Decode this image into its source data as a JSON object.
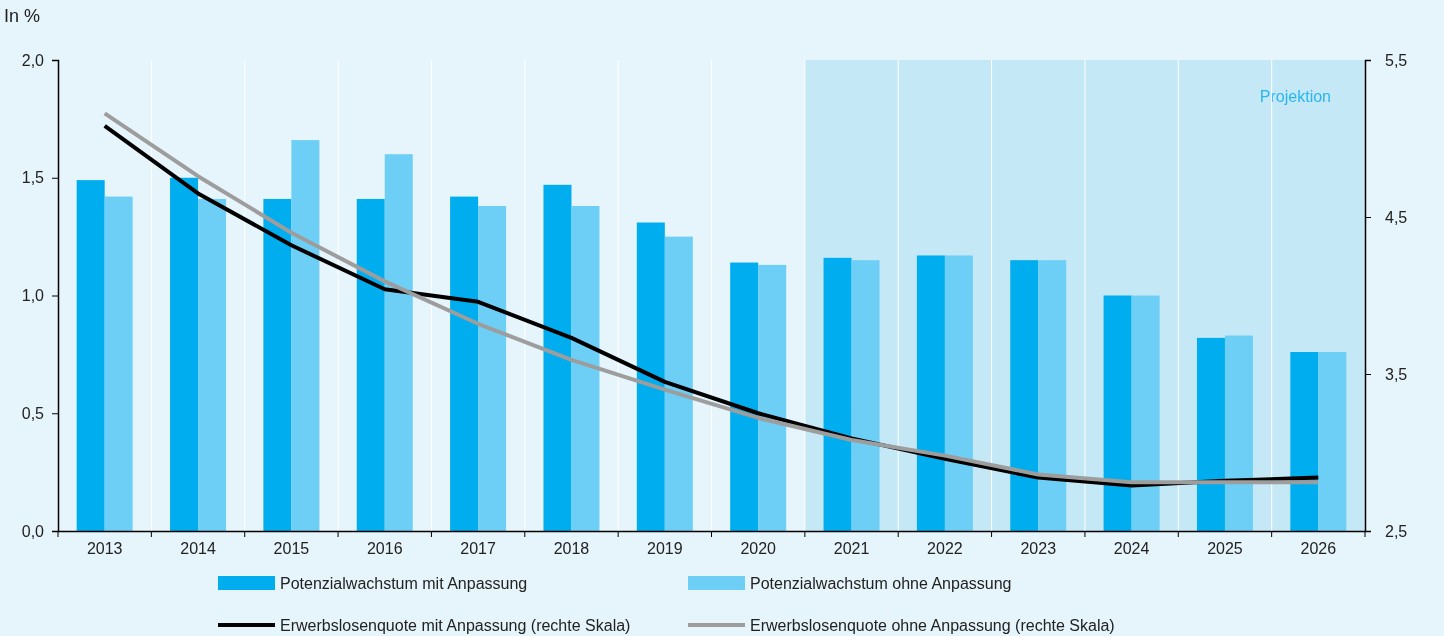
{
  "chart_data": {
    "type": "bar",
    "ylabel": "In %",
    "categories": [
      "2013",
      "2014",
      "2015",
      "2016",
      "2017",
      "2018",
      "2019",
      "2020",
      "2021",
      "2022",
      "2023",
      "2024",
      "2025",
      "2026"
    ],
    "series": [
      {
        "name": "Potenzialwachstum mit Anpassung",
        "color": "#00aeef",
        "values": [
          1.49,
          1.5,
          1.41,
          1.41,
          1.42,
          1.47,
          1.31,
          1.14,
          1.16,
          1.17,
          1.15,
          1.0,
          0.82,
          0.76
        ]
      },
      {
        "name": "Potenzialwachstum ohne Anpassung",
        "color": "#6dcff6",
        "values": [
          1.42,
          1.41,
          1.66,
          1.6,
          1.38,
          1.38,
          1.25,
          1.13,
          1.15,
          1.17,
          1.15,
          1.0,
          0.83,
          0.76
        ]
      },
      {
        "name": "Erwerbslosenquote mit Anpassung (rechte Skala)",
        "type": "line",
        "axis": "y2",
        "color": "#000000",
        "values": [
          5.08,
          4.65,
          4.32,
          4.04,
          3.96,
          3.73,
          3.45,
          3.25,
          3.09,
          2.96,
          2.84,
          2.79,
          2.82,
          2.84
        ]
      },
      {
        "name": "Erwerbslosenquote ohne Anpassung (rechte Skala)",
        "type": "line",
        "axis": "y2",
        "color": "#9d9d9d",
        "values": [
          5.16,
          4.76,
          4.4,
          4.09,
          3.82,
          3.59,
          3.4,
          3.22,
          3.08,
          2.98,
          2.86,
          2.81,
          2.81,
          2.81
        ]
      }
    ],
    "ylim": [
      0,
      2
    ],
    "yticks": [
      {
        "value": 0,
        "label": "0,0"
      },
      {
        "value": 0.5,
        "label": "0,5"
      },
      {
        "value": 1,
        "label": "1,0"
      },
      {
        "value": 1.5,
        "label": "1,5"
      },
      {
        "value": 2,
        "label": "2,0"
      }
    ],
    "y2lim": [
      2.5,
      5.5
    ],
    "y2ticks": [
      {
        "value": 2.5,
        "label": "2,5"
      },
      {
        "value": 3.5,
        "label": "3,5"
      },
      {
        "value": 4.5,
        "label": "4,5"
      },
      {
        "value": 5.5,
        "label": "5,5"
      }
    ],
    "bands": [
      {
        "axis": "x",
        "from": "2021",
        "to": "2026",
        "label": "Projektion",
        "color": "#c5e8f7"
      }
    ],
    "grid": "x",
    "legend": "bottom",
    "marker": "none",
    "line_style": "solid"
  }
}
